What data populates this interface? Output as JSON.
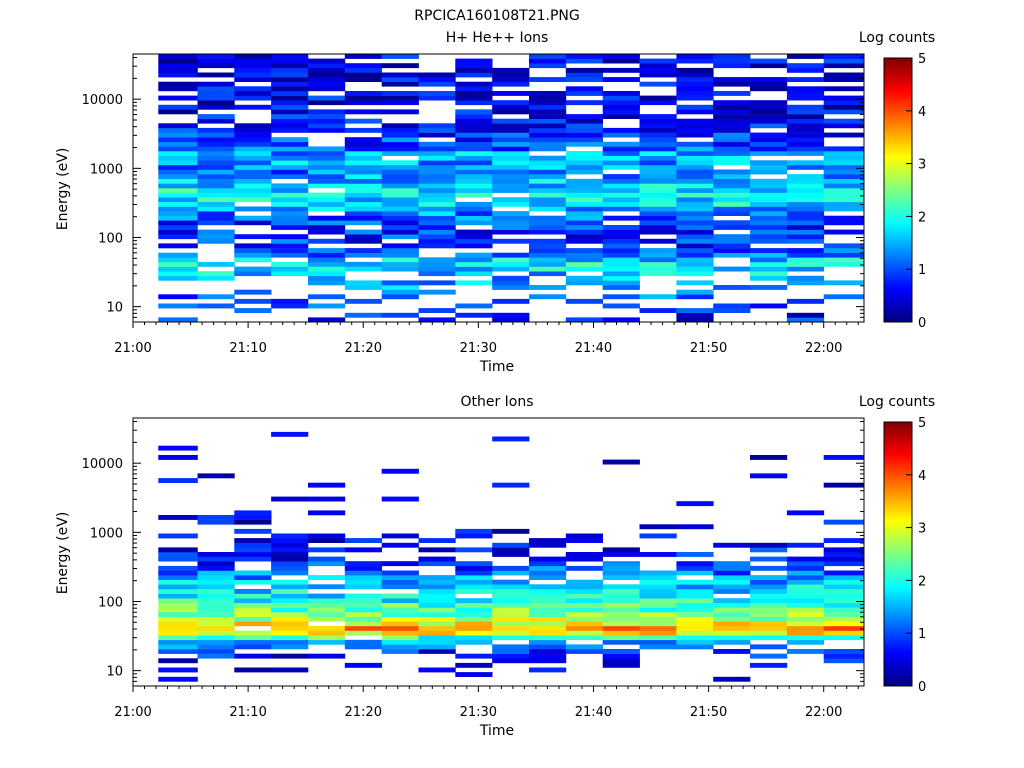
{
  "figure": {
    "title": "RPCICA160108T21.PNG"
  },
  "chart_data": [
    {
      "type": "heatmap",
      "title": "H+ He++ Ions",
      "xlabel": "Time",
      "ylabel": "Energy (eV)",
      "x_ticks": [
        "21:00",
        "21:10",
        "21:20",
        "21:30",
        "21:40",
        "21:50",
        "22:00"
      ],
      "x_range_minutes": [
        0,
        63.5
      ],
      "y_ticks": [
        "10",
        "100",
        "1000",
        "10000"
      ],
      "y_scale": "log",
      "y_range": [
        6,
        45000
      ],
      "colorbar": {
        "label": "Log counts",
        "ticks": [
          "0",
          "1",
          "2",
          "3",
          "4",
          "5"
        ],
        "range": [
          0,
          5
        ]
      },
      "time_bins_minutes": [
        2.2,
        5.6,
        8.8,
        12.0,
        15.2,
        18.4,
        21.6,
        24.8,
        28.0,
        31.2,
        34.4,
        37.6,
        40.8,
        44.0,
        47.2,
        50.4,
        53.6,
        56.8,
        60.0,
        63.5
      ],
      "profile": [
        [
          8,
          0.7
        ],
        [
          30,
          1.6
        ],
        [
          45,
          1.9
        ],
        [
          60,
          0.9
        ],
        [
          150,
          0.8
        ],
        [
          300,
          1.7
        ],
        [
          500,
          1.8
        ],
        [
          900,
          1.2
        ],
        [
          1500,
          1.6
        ],
        [
          2000,
          1.0
        ],
        [
          5000,
          0.6
        ],
        [
          15000,
          0.5
        ],
        [
          40000,
          0.5
        ]
      ],
      "density": [
        [
          6,
          0.25
        ],
        [
          10,
          0.3
        ],
        [
          15,
          0.4
        ],
        [
          25,
          0.55
        ],
        [
          40,
          0.95
        ],
        [
          70,
          0.6
        ],
        [
          150,
          0.75
        ],
        [
          300,
          0.95
        ],
        [
          2000,
          0.9
        ],
        [
          5000,
          0.7
        ],
        [
          45000,
          0.7
        ]
      ],
      "seed": 7
    },
    {
      "type": "heatmap",
      "title": "Other Ions",
      "xlabel": "Time",
      "ylabel": "Energy (eV)",
      "x_ticks": [
        "21:00",
        "21:10",
        "21:20",
        "21:30",
        "21:40",
        "21:50",
        "22:00"
      ],
      "x_range_minutes": [
        0,
        63.5
      ],
      "y_ticks": [
        "10",
        "100",
        "1000",
        "10000"
      ],
      "y_scale": "log",
      "y_range": [
        6,
        45000
      ],
      "colorbar": {
        "label": "Log counts",
        "ticks": [
          "0",
          "1",
          "2",
          "3",
          "4",
          "5"
        ],
        "range": [
          0,
          5
        ]
      },
      "time_bins_minutes": [
        2.2,
        5.6,
        8.8,
        12.0,
        15.2,
        18.4,
        21.6,
        24.8,
        28.0,
        31.2,
        34.4,
        37.6,
        40.8,
        44.0,
        47.2,
        50.4,
        53.6,
        56.8,
        60.0,
        63.5
      ],
      "profile": [
        [
          10,
          0.3
        ],
        [
          20,
          0.8
        ],
        [
          28,
          1.7
        ],
        [
          35,
          3.2
        ],
        [
          42,
          3.6
        ],
        [
          50,
          3.0
        ],
        [
          70,
          2.4
        ],
        [
          100,
          2.0
        ],
        [
          150,
          1.7
        ],
        [
          250,
          1.2
        ],
        [
          400,
          0.7
        ],
        [
          1000,
          0.5
        ],
        [
          3000,
          0.4
        ],
        [
          20000,
          0.3
        ]
      ],
      "density": [
        [
          6,
          0.0
        ],
        [
          10,
          0.15
        ],
        [
          15,
          0.2
        ],
        [
          20,
          0.5
        ],
        [
          25,
          0.9
        ],
        [
          60,
          1.0
        ],
        [
          150,
          0.9
        ],
        [
          300,
          0.7
        ],
        [
          600,
          0.45
        ],
        [
          1200,
          0.25
        ],
        [
          3000,
          0.1
        ],
        [
          10000,
          0.05
        ],
        [
          45000,
          0.02
        ]
      ],
      "seed": 19
    }
  ]
}
